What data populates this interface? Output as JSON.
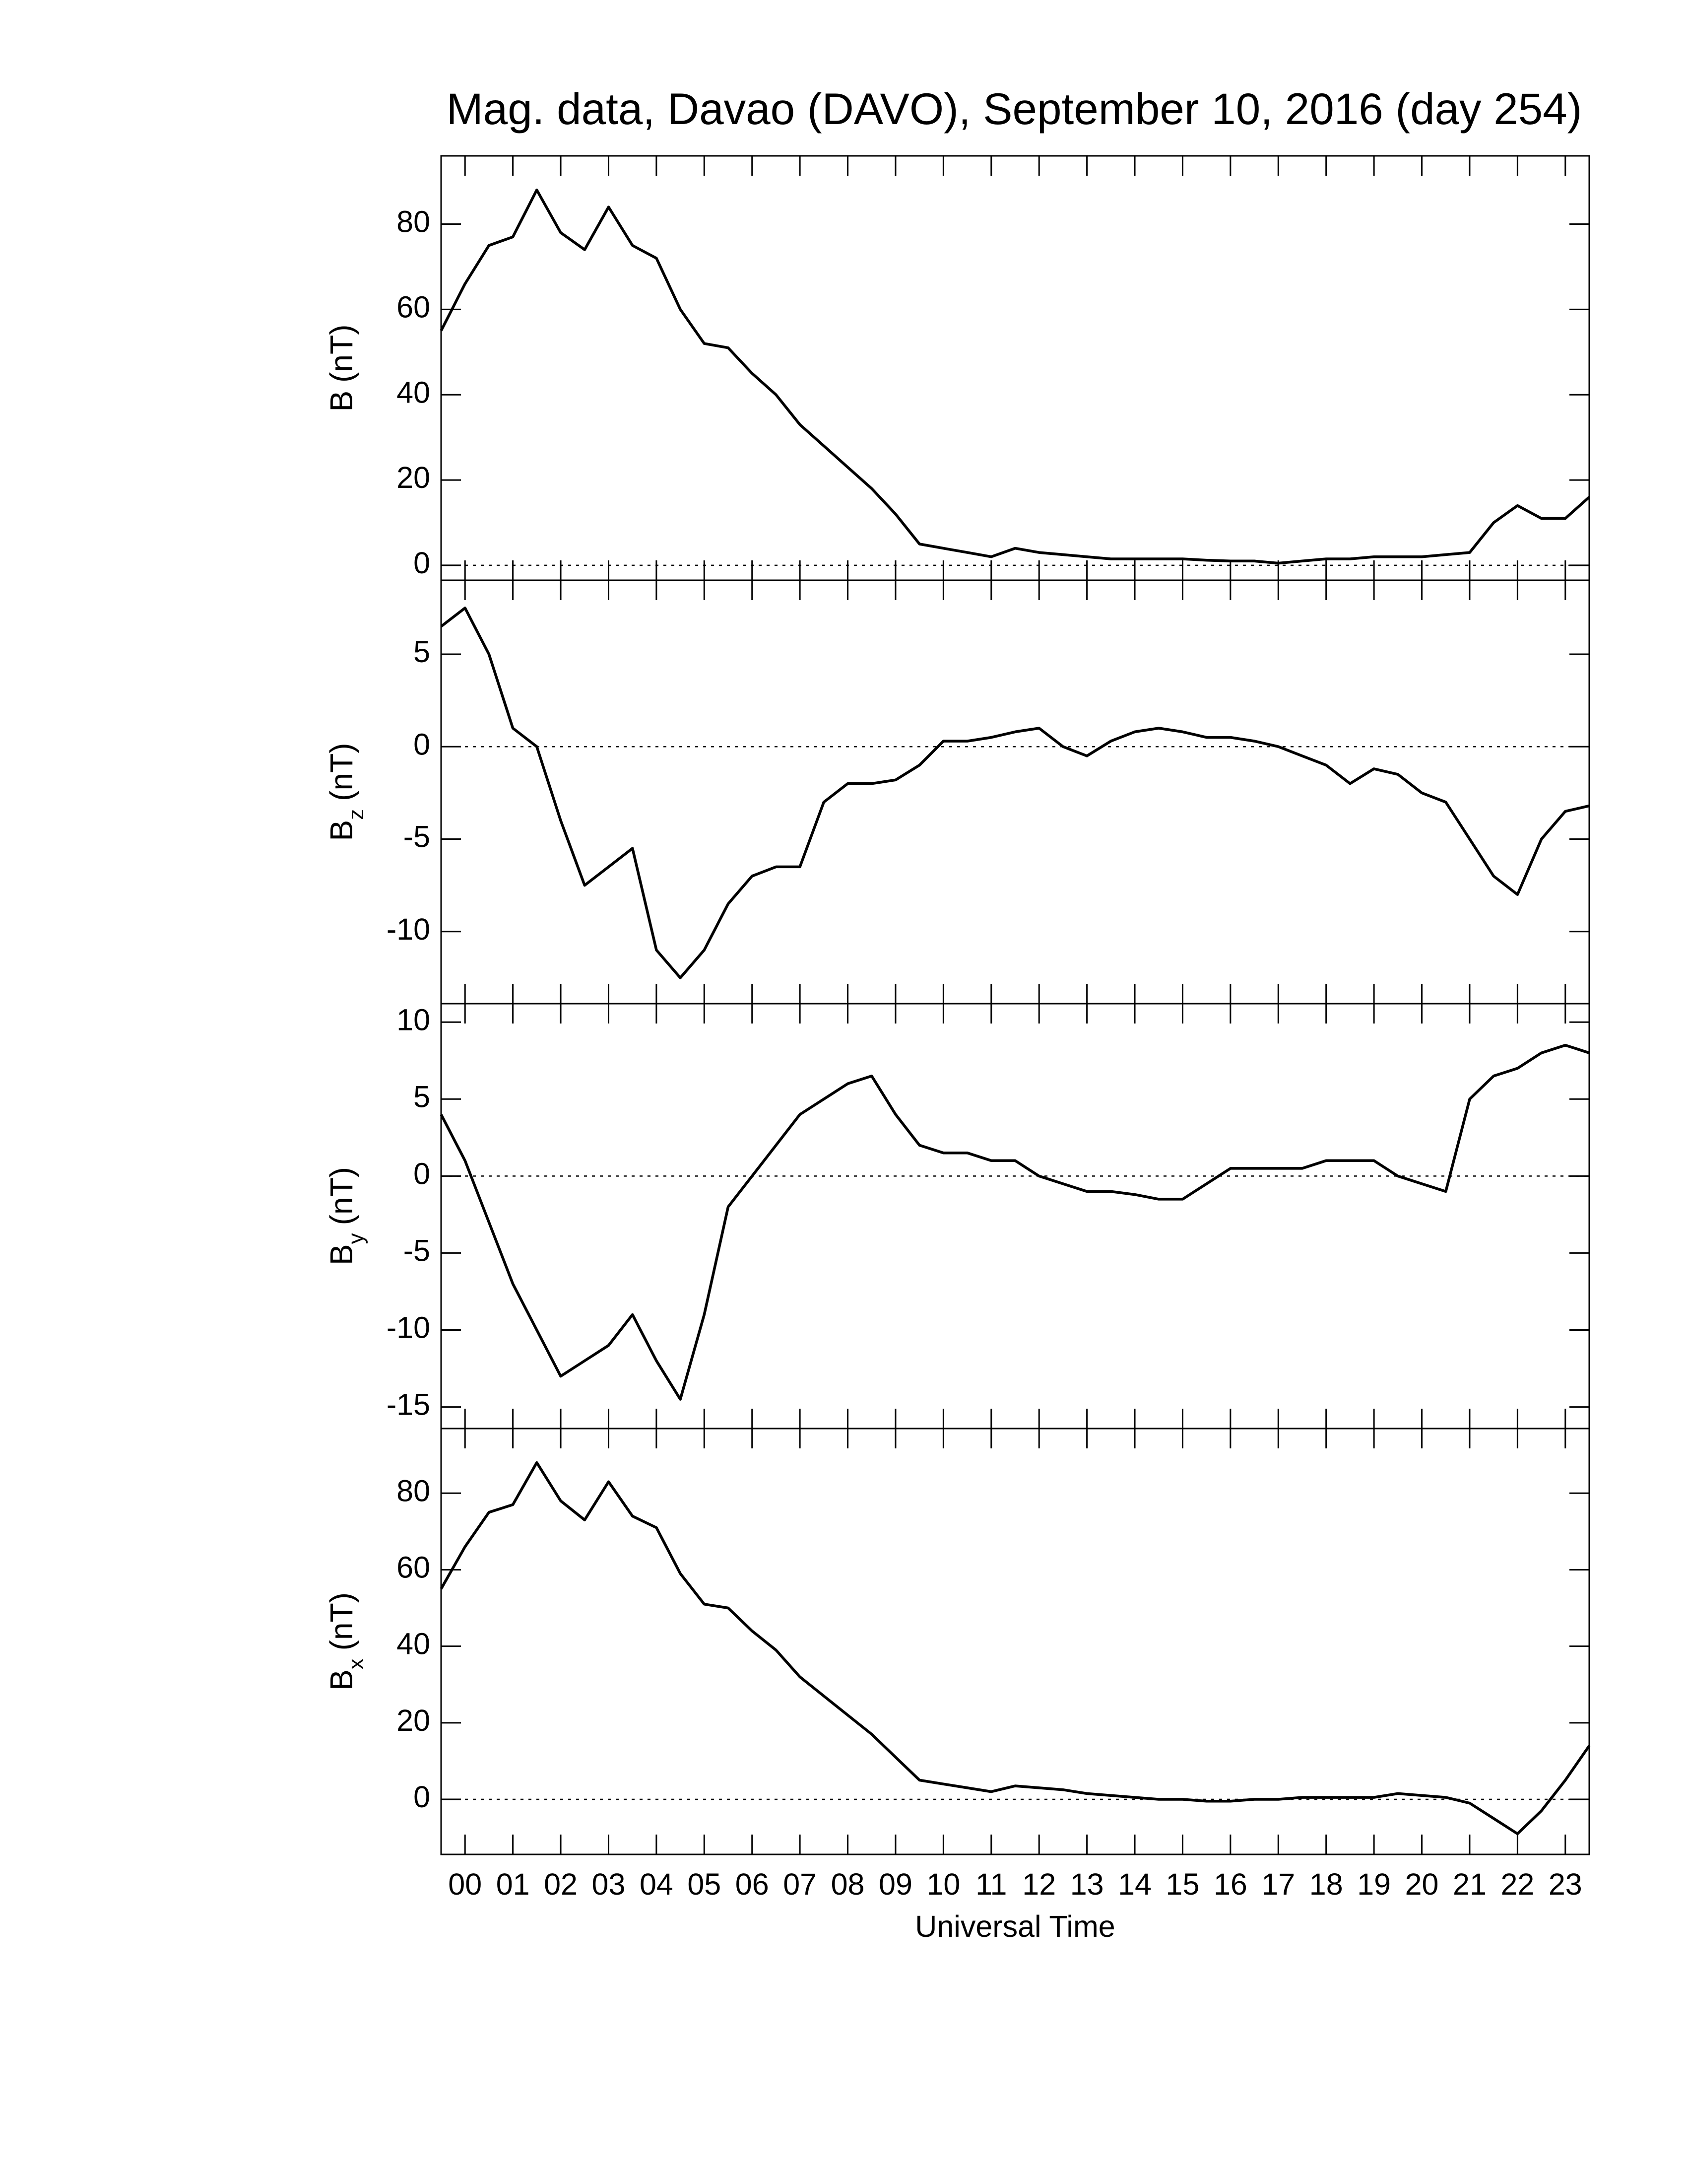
{
  "chart_data": [
    {
      "type": "line",
      "title": "Mag. data, Davao (DAVO), September 10, 2016 (day 254)",
      "ylabel": {
        "base": "B",
        "unit": "(nT)"
      },
      "x": [
        0,
        0.5,
        1,
        1.5,
        2,
        2.5,
        3,
        3.5,
        4,
        4.5,
        5,
        5.5,
        6,
        6.5,
        7,
        7.5,
        8,
        8.5,
        9,
        9.5,
        10,
        10.5,
        11,
        11.5,
        12,
        12.5,
        13,
        13.5,
        14,
        14.5,
        15,
        15.5,
        16,
        16.5,
        17,
        17.5,
        18,
        18.5,
        19,
        19.5,
        20,
        20.5,
        21,
        21.5,
        22,
        22.5,
        23,
        23.5,
        24
      ],
      "xlim": [
        0,
        24
      ],
      "series": [
        {
          "name": "B",
          "color": "#000000",
          "values": [
            55,
            66,
            75,
            77,
            88,
            78,
            74,
            84,
            75,
            72,
            60,
            52,
            51,
            45,
            40,
            33,
            28,
            23,
            18,
            12,
            5,
            4,
            3,
            2,
            4,
            3,
            2.5,
            2,
            1.5,
            1.5,
            1.5,
            1.5,
            1.2,
            1,
            1,
            0.5,
            1,
            1.5,
            1.5,
            2,
            2,
            2,
            2.5,
            3,
            10,
            14,
            11,
            11,
            16
          ]
        }
      ],
      "ylim": [
        -3.5,
        96
      ],
      "yticks": [
        0,
        20,
        40,
        60,
        80
      ]
    },
    {
      "type": "line",
      "ylabel": {
        "base": "B",
        "sub": "z",
        "unit": "(nT)"
      },
      "x": [
        0,
        0.5,
        1,
        1.5,
        2,
        2.5,
        3,
        3.5,
        4,
        4.5,
        5,
        5.5,
        6,
        6.5,
        7,
        7.5,
        8,
        8.5,
        9,
        9.5,
        10,
        10.5,
        11,
        11.5,
        12,
        12.5,
        13,
        13.5,
        14,
        14.5,
        15,
        15.5,
        16,
        16.5,
        17,
        17.5,
        18,
        18.5,
        19,
        19.5,
        20,
        20.5,
        21,
        21.5,
        22,
        22.5,
        23,
        23.5,
        24
      ],
      "xlim": [
        0,
        24
      ],
      "series": [
        {
          "name": "Bz",
          "color": "#000000",
          "values": [
            6.5,
            7.5,
            5,
            1,
            0,
            -4,
            -7.5,
            -6.5,
            -5.5,
            -11,
            -12.5,
            -11,
            -8.5,
            -7,
            -6.5,
            -6.5,
            -3,
            -2,
            -2,
            -1.8,
            -1,
            0.3,
            0.3,
            0.5,
            0.8,
            1,
            0,
            -0.5,
            0.3,
            0.8,
            1,
            0.8,
            0.5,
            0.5,
            0.3,
            0,
            -0.5,
            -1,
            -2,
            -1.2,
            -1.5,
            -2.5,
            -3,
            -5,
            -7,
            -8,
            -5,
            -3.5,
            -3.2
          ]
        }
      ],
      "ylim": [
        -13.9,
        9
      ],
      "yticks": [
        -10,
        -5,
        0,
        5
      ]
    },
    {
      "type": "line",
      "ylabel": {
        "base": "B",
        "sub": "y",
        "unit": "(nT)"
      },
      "x": [
        0,
        0.5,
        1,
        1.5,
        2,
        2.5,
        3,
        3.5,
        4,
        4.5,
        5,
        5.5,
        6,
        6.5,
        7,
        7.5,
        8,
        8.5,
        9,
        9.5,
        10,
        10.5,
        11,
        11.5,
        12,
        12.5,
        13,
        13.5,
        14,
        14.5,
        15,
        15.5,
        16,
        16.5,
        17,
        17.5,
        18,
        18.5,
        19,
        19.5,
        20,
        20.5,
        21,
        21.5,
        22,
        22.5,
        23,
        23.5,
        24
      ],
      "xlim": [
        0,
        24
      ],
      "series": [
        {
          "name": "By",
          "color": "#000000",
          "values": [
            4,
            1,
            -3,
            -7,
            -10,
            -13,
            -12,
            -11,
            -9,
            -12,
            -14.5,
            -9,
            -2,
            0,
            2,
            4,
            5,
            6,
            6.5,
            4,
            2,
            1.5,
            1.5,
            1,
            1,
            0,
            -0.5,
            -1,
            -1,
            -1.2,
            -1.5,
            -1.5,
            -0.5,
            0.5,
            0.5,
            0.5,
            0.5,
            1,
            1,
            1,
            0,
            -0.5,
            -1,
            5,
            6.5,
            7,
            8,
            8.5,
            8
          ]
        }
      ],
      "ylim": [
        -16.4,
        11.2
      ],
      "yticks": [
        -15,
        -10,
        -5,
        0,
        5,
        10
      ]
    },
    {
      "type": "line",
      "ylabel": {
        "base": "B",
        "sub": "x",
        "unit": "(nT)"
      },
      "xlabel": "Universal Time",
      "x": [
        0,
        0.5,
        1,
        1.5,
        2,
        2.5,
        3,
        3.5,
        4,
        4.5,
        5,
        5.5,
        6,
        6.5,
        7,
        7.5,
        8,
        8.5,
        9,
        9.5,
        10,
        10.5,
        11,
        11.5,
        12,
        12.5,
        13,
        13.5,
        14,
        14.5,
        15,
        15.5,
        16,
        16.5,
        17,
        17.5,
        18,
        18.5,
        19,
        19.5,
        20,
        20.5,
        21,
        21.5,
        22,
        22.5,
        23,
        23.5,
        24
      ],
      "xlim": [
        0,
        24
      ],
      "xticks": [
        {
          "value": 0.5,
          "label": "00"
        },
        {
          "value": 1.5,
          "label": "01"
        },
        {
          "value": 2.5,
          "label": "02"
        },
        {
          "value": 3.5,
          "label": "03"
        },
        {
          "value": 4.5,
          "label": "04"
        },
        {
          "value": 5.5,
          "label": "05"
        },
        {
          "value": 6.5,
          "label": "06"
        },
        {
          "value": 7.5,
          "label": "07"
        },
        {
          "value": 8.5,
          "label": "08"
        },
        {
          "value": 9.5,
          "label": "09"
        },
        {
          "value": 10.5,
          "label": "10"
        },
        {
          "value": 11.5,
          "label": "11"
        },
        {
          "value": 12.5,
          "label": "12"
        },
        {
          "value": 13.5,
          "label": "13"
        },
        {
          "value": 14.5,
          "label": "14"
        },
        {
          "value": 15.5,
          "label": "15"
        },
        {
          "value": 16.5,
          "label": "16"
        },
        {
          "value": 17.5,
          "label": "17"
        },
        {
          "value": 18.5,
          "label": "18"
        },
        {
          "value": 19.5,
          "label": "19"
        },
        {
          "value": 20.5,
          "label": "20"
        },
        {
          "value": 21.5,
          "label": "21"
        },
        {
          "value": 22.5,
          "label": "22"
        },
        {
          "value": 23.5,
          "label": "23"
        }
      ],
      "series": [
        {
          "name": "Bx",
          "color": "#000000",
          "values": [
            55,
            66,
            75,
            77,
            88,
            78,
            73,
            83,
            74,
            71,
            59,
            51,
            50,
            44,
            39,
            32,
            27,
            22,
            17,
            11,
            5,
            4,
            3,
            2,
            3.5,
            3,
            2.5,
            1.5,
            1,
            0.5,
            0,
            0,
            -0.5,
            -0.5,
            0,
            0,
            0.5,
            0.5,
            0.5,
            0.5,
            1.5,
            1,
            0.5,
            -1,
            -5,
            -9,
            -3,
            5,
            14
          ]
        }
      ],
      "ylim": [
        -14.4,
        96.9
      ],
      "yticks": [
        0,
        20,
        40,
        60,
        80
      ]
    }
  ]
}
